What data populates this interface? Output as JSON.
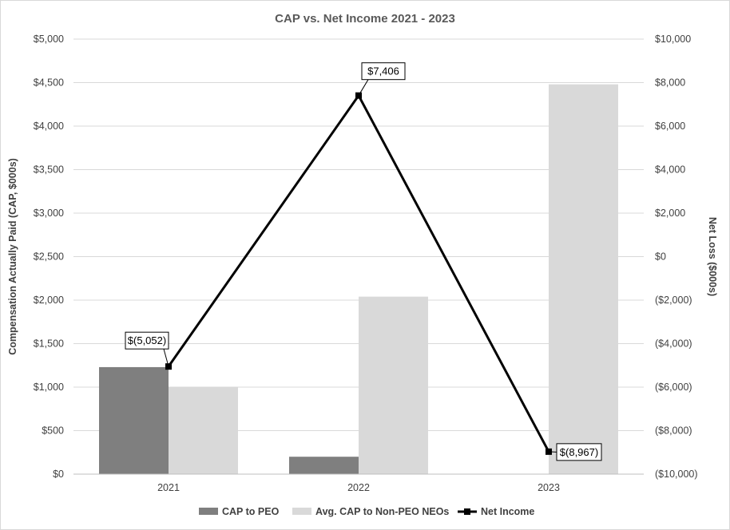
{
  "chart_data": {
    "type": "bar",
    "title": "CAP vs. Net Income 2021 - 2023",
    "categories": [
      "2021",
      "2022",
      "2023"
    ],
    "ylabel": "Compensation Actually Paid (CAP, $000s)",
    "ylabel_right": "Net Loss ($000s)",
    "ylim": [
      0,
      5000
    ],
    "ylim_right": [
      -10000,
      10000
    ],
    "yticks": [
      {
        "value": 0,
        "label": "$0"
      },
      {
        "value": 500,
        "label": "$500"
      },
      {
        "value": 1000,
        "label": "$1,000"
      },
      {
        "value": 1500,
        "label": "$1,500"
      },
      {
        "value": 2000,
        "label": "$2,000"
      },
      {
        "value": 2500,
        "label": "$2,500"
      },
      {
        "value": 3000,
        "label": "$3,000"
      },
      {
        "value": 3500,
        "label": "$3,500"
      },
      {
        "value": 4000,
        "label": "$4,000"
      },
      {
        "value": 4500,
        "label": "$4,500"
      },
      {
        "value": 5000,
        "label": "$5,000"
      }
    ],
    "yticks_right": [
      {
        "value": -10000,
        "label": "($10,000)"
      },
      {
        "value": -8000,
        "label": "($8,000)"
      },
      {
        "value": -6000,
        "label": "($6,000)"
      },
      {
        "value": -4000,
        "label": "($4,000)"
      },
      {
        "value": -2000,
        "label": "($2,000)"
      },
      {
        "value": 0,
        "label": "$0"
      },
      {
        "value": 2000,
        "label": "$2,000"
      },
      {
        "value": 4000,
        "label": "$4,000"
      },
      {
        "value": 6000,
        "label": "$6,000"
      },
      {
        "value": 8000,
        "label": "$8,000"
      },
      {
        "value": 10000,
        "label": "$10,000"
      }
    ],
    "grid": true,
    "legend_position": "bottom",
    "series": [
      {
        "name": "CAP to PEO",
        "kind": "bar",
        "axis": "left",
        "color": "#7f7f7f",
        "values": [
          1230,
          200,
          0
        ]
      },
      {
        "name": "Avg. CAP to Non-PEO NEOs",
        "kind": "bar",
        "axis": "left",
        "color": "#d9d9d9",
        "values": [
          1000,
          2040,
          4480
        ]
      },
      {
        "name": "Net Income",
        "kind": "line",
        "axis": "right",
        "color": "#000000",
        "values": [
          -5052,
          7406,
          -8967
        ],
        "labels": [
          "$(5,052)",
          "$7,406",
          "$(8,967)"
        ]
      }
    ]
  }
}
